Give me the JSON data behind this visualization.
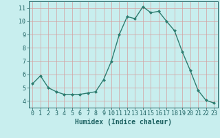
{
  "x": [
    0,
    1,
    2,
    3,
    4,
    5,
    6,
    7,
    8,
    9,
    10,
    11,
    12,
    13,
    14,
    15,
    16,
    17,
    18,
    19,
    20,
    21,
    22,
    23
  ],
  "y": [
    5.3,
    5.9,
    5.0,
    4.7,
    4.5,
    4.5,
    4.5,
    4.6,
    4.7,
    5.6,
    7.0,
    9.0,
    10.35,
    10.2,
    11.1,
    10.65,
    10.75,
    10.0,
    9.3,
    7.7,
    6.3,
    4.8,
    4.05,
    3.85
  ],
  "line_color": "#2e7d70",
  "marker": "D",
  "markersize": 2.0,
  "linewidth": 1.0,
  "bg_color": "#c8eeee",
  "grid_color": "#d4a0a0",
  "xlabel": "Humidex (Indice chaleur)",
  "xlabel_fontsize": 7,
  "xlabel_color": "#1a5f5f",
  "tick_color": "#1a5f5f",
  "tick_fontsize": 6,
  "xlim": [
    -0.5,
    23.5
  ],
  "ylim": [
    3.5,
    11.5
  ],
  "yticks": [
    4,
    5,
    6,
    7,
    8,
    9,
    10,
    11
  ],
  "xticks": [
    0,
    1,
    2,
    3,
    4,
    5,
    6,
    7,
    8,
    9,
    10,
    11,
    12,
    13,
    14,
    15,
    16,
    17,
    18,
    19,
    20,
    21,
    22,
    23
  ]
}
